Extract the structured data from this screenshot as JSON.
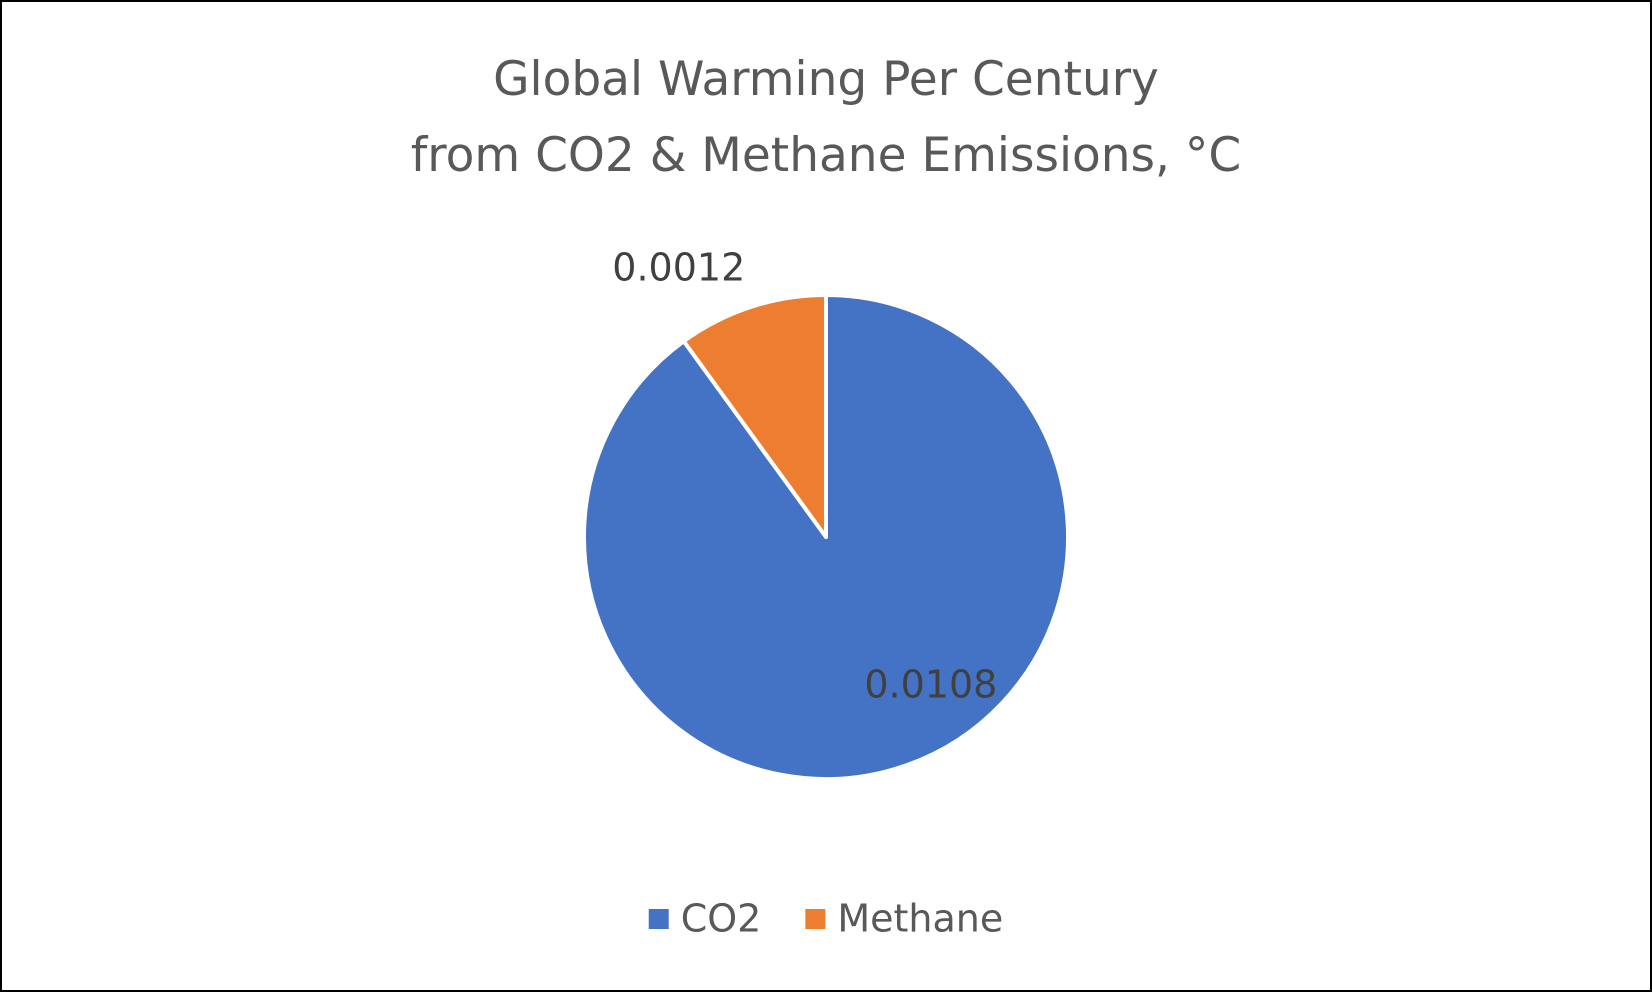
{
  "chart_data": {
    "type": "pie",
    "title": "Global Warming Per Century\nfrom CO2 & Methane Emissions, °C",
    "categories": [
      "CO2",
      "Methane"
    ],
    "values": [
      0.0108,
      0.0012
    ],
    "colors": [
      "#4472c4",
      "#ed7d31"
    ],
    "legend": "bottom"
  }
}
